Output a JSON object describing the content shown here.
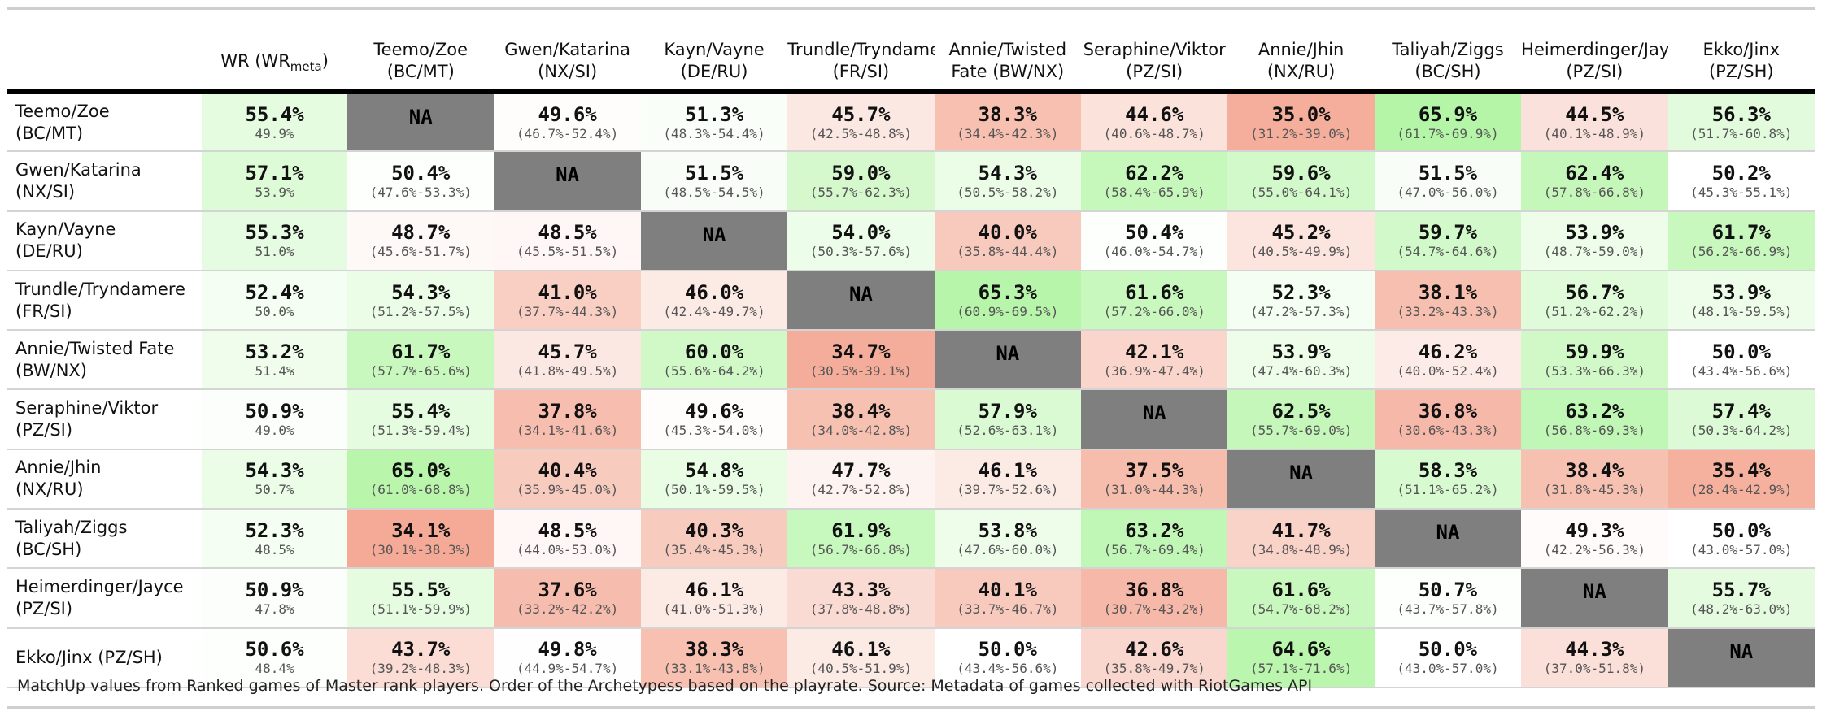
{
  "chart_data": {
    "type": "table",
    "wr_header": "WR (WR",
    "wr_header_sub": "meta",
    "wr_header_close": ")",
    "na_label": "NA",
    "columns": [
      {
        "l1": "Teemo/Zoe",
        "l2": "(BC/MT)"
      },
      {
        "l1": "Gwen/Katarina",
        "l2": "(NX/SI)"
      },
      {
        "l1": "Kayn/Vayne",
        "l2": "(DE/RU)"
      },
      {
        "l1": "Trundle/Tryndamere",
        "l2": "(FR/SI)"
      },
      {
        "l1": "Annie/Twisted",
        "l2": "Fate (BW/NX)"
      },
      {
        "l1": "Seraphine/Viktor",
        "l2": "(PZ/SI)"
      },
      {
        "l1": "Annie/Jhin",
        "l2": "(NX/RU)"
      },
      {
        "l1": "Taliyah/Ziggs",
        "l2": "(BC/SH)"
      },
      {
        "l1": "Heimerdinger/Jayce",
        "l2": "(PZ/SI)"
      },
      {
        "l1": "Ekko/Jinx",
        "l2": "(PZ/SH)"
      }
    ],
    "rows": [
      {
        "l1": "Teemo/Zoe",
        "l2": "(BC/MT)",
        "wr": "55.4%",
        "wr_meta": "49.9%",
        "cells": [
          null,
          {
            "v": 49.6,
            "ci": "(46.7%-52.4%)"
          },
          {
            "v": 51.3,
            "ci": "(48.3%-54.4%)"
          },
          {
            "v": 45.7,
            "ci": "(42.5%-48.8%)"
          },
          {
            "v": 38.3,
            "ci": "(34.4%-42.3%)"
          },
          {
            "v": 44.6,
            "ci": "(40.6%-48.7%)"
          },
          {
            "v": 35.0,
            "ci": "(31.2%-39.0%)"
          },
          {
            "v": 65.9,
            "ci": "(61.7%-69.9%)"
          },
          {
            "v": 44.5,
            "ci": "(40.1%-48.9%)"
          },
          {
            "v": 56.3,
            "ci": "(51.7%-60.8%)"
          }
        ]
      },
      {
        "l1": "Gwen/Katarina",
        "l2": "(NX/SI)",
        "wr": "57.1%",
        "wr_meta": "53.9%",
        "cells": [
          {
            "v": 50.4,
            "ci": "(47.6%-53.3%)"
          },
          null,
          {
            "v": 51.5,
            "ci": "(48.5%-54.5%)"
          },
          {
            "v": 59.0,
            "ci": "(55.7%-62.3%)"
          },
          {
            "v": 54.3,
            "ci": "(50.5%-58.2%)"
          },
          {
            "v": 62.2,
            "ci": "(58.4%-65.9%)"
          },
          {
            "v": 59.6,
            "ci": "(55.0%-64.1%)"
          },
          {
            "v": 51.5,
            "ci": "(47.0%-56.0%)"
          },
          {
            "v": 62.4,
            "ci": "(57.8%-66.8%)"
          },
          {
            "v": 50.2,
            "ci": "(45.3%-55.1%)"
          }
        ]
      },
      {
        "l1": "Kayn/Vayne",
        "l2": "(DE/RU)",
        "wr": "55.3%",
        "wr_meta": "51.0%",
        "cells": [
          {
            "v": 48.7,
            "ci": "(45.6%-51.7%)"
          },
          {
            "v": 48.5,
            "ci": "(45.5%-51.5%)"
          },
          null,
          {
            "v": 54.0,
            "ci": "(50.3%-57.6%)"
          },
          {
            "v": 40.0,
            "ci": "(35.8%-44.4%)"
          },
          {
            "v": 50.4,
            "ci": "(46.0%-54.7%)"
          },
          {
            "v": 45.2,
            "ci": "(40.5%-49.9%)"
          },
          {
            "v": 59.7,
            "ci": "(54.7%-64.6%)"
          },
          {
            "v": 53.9,
            "ci": "(48.7%-59.0%)"
          },
          {
            "v": 61.7,
            "ci": "(56.2%-66.9%)"
          }
        ]
      },
      {
        "l1": "Trundle/Tryndamere",
        "l2": "(FR/SI)",
        "wr": "52.4%",
        "wr_meta": "50.0%",
        "cells": [
          {
            "v": 54.3,
            "ci": "(51.2%-57.5%)"
          },
          {
            "v": 41.0,
            "ci": "(37.7%-44.3%)"
          },
          {
            "v": 46.0,
            "ci": "(42.4%-49.7%)"
          },
          null,
          {
            "v": 65.3,
            "ci": "(60.9%-69.5%)"
          },
          {
            "v": 61.6,
            "ci": "(57.2%-66.0%)"
          },
          {
            "v": 52.3,
            "ci": "(47.2%-57.3%)"
          },
          {
            "v": 38.1,
            "ci": "(33.2%-43.3%)"
          },
          {
            "v": 56.7,
            "ci": "(51.2%-62.2%)"
          },
          {
            "v": 53.9,
            "ci": "(48.1%-59.5%)"
          }
        ]
      },
      {
        "l1": "Annie/Twisted Fate",
        "l2": "(BW/NX)",
        "wr": "53.2%",
        "wr_meta": "51.4%",
        "cells": [
          {
            "v": 61.7,
            "ci": "(57.7%-65.6%)"
          },
          {
            "v": 45.7,
            "ci": "(41.8%-49.5%)"
          },
          {
            "v": 60.0,
            "ci": "(55.6%-64.2%)"
          },
          {
            "v": 34.7,
            "ci": "(30.5%-39.1%)"
          },
          null,
          {
            "v": 42.1,
            "ci": "(36.9%-47.4%)"
          },
          {
            "v": 53.9,
            "ci": "(47.4%-60.3%)"
          },
          {
            "v": 46.2,
            "ci": "(40.0%-52.4%)"
          },
          {
            "v": 59.9,
            "ci": "(53.3%-66.3%)"
          },
          {
            "v": 50.0,
            "ci": "(43.4%-56.6%)"
          }
        ]
      },
      {
        "l1": "Seraphine/Viktor",
        "l2": "(PZ/SI)",
        "wr": "50.9%",
        "wr_meta": "49.0%",
        "cells": [
          {
            "v": 55.4,
            "ci": "(51.3%-59.4%)"
          },
          {
            "v": 37.8,
            "ci": "(34.1%-41.6%)"
          },
          {
            "v": 49.6,
            "ci": "(45.3%-54.0%)"
          },
          {
            "v": 38.4,
            "ci": "(34.0%-42.8%)"
          },
          {
            "v": 57.9,
            "ci": "(52.6%-63.1%)"
          },
          null,
          {
            "v": 62.5,
            "ci": "(55.7%-69.0%)"
          },
          {
            "v": 36.8,
            "ci": "(30.6%-43.3%)"
          },
          {
            "v": 63.2,
            "ci": "(56.8%-69.3%)"
          },
          {
            "v": 57.4,
            "ci": "(50.3%-64.2%)"
          }
        ]
      },
      {
        "l1": "Annie/Jhin",
        "l2": "(NX/RU)",
        "wr": "54.3%",
        "wr_meta": "50.7%",
        "cells": [
          {
            "v": 65.0,
            "ci": "(61.0%-68.8%)"
          },
          {
            "v": 40.4,
            "ci": "(35.9%-45.0%)"
          },
          {
            "v": 54.8,
            "ci": "(50.1%-59.5%)"
          },
          {
            "v": 47.7,
            "ci": "(42.7%-52.8%)"
          },
          {
            "v": 46.1,
            "ci": "(39.7%-52.6%)"
          },
          {
            "v": 37.5,
            "ci": "(31.0%-44.3%)"
          },
          null,
          {
            "v": 58.3,
            "ci": "(51.1%-65.2%)"
          },
          {
            "v": 38.4,
            "ci": "(31.8%-45.3%)"
          },
          {
            "v": 35.4,
            "ci": "(28.4%-42.9%)"
          }
        ]
      },
      {
        "l1": "Taliyah/Ziggs",
        "l2": "(BC/SH)",
        "wr": "52.3%",
        "wr_meta": "48.5%",
        "cells": [
          {
            "v": 34.1,
            "ci": "(30.1%-38.3%)"
          },
          {
            "v": 48.5,
            "ci": "(44.0%-53.0%)"
          },
          {
            "v": 40.3,
            "ci": "(35.4%-45.3%)"
          },
          {
            "v": 61.9,
            "ci": "(56.7%-66.8%)"
          },
          {
            "v": 53.8,
            "ci": "(47.6%-60.0%)"
          },
          {
            "v": 63.2,
            "ci": "(56.7%-69.4%)"
          },
          {
            "v": 41.7,
            "ci": "(34.8%-48.9%)"
          },
          null,
          {
            "v": 49.3,
            "ci": "(42.2%-56.3%)"
          },
          {
            "v": 50.0,
            "ci": "(43.0%-57.0%)"
          }
        ]
      },
      {
        "l1": "Heimerdinger/Jayce",
        "l2": "(PZ/SI)",
        "wr": "50.9%",
        "wr_meta": "47.8%",
        "cells": [
          {
            "v": 55.5,
            "ci": "(51.1%-59.9%)"
          },
          {
            "v": 37.6,
            "ci": "(33.2%-42.2%)"
          },
          {
            "v": 46.1,
            "ci": "(41.0%-51.3%)"
          },
          {
            "v": 43.3,
            "ci": "(37.8%-48.8%)"
          },
          {
            "v": 40.1,
            "ci": "(33.7%-46.7%)"
          },
          {
            "v": 36.8,
            "ci": "(30.7%-43.2%)"
          },
          {
            "v": 61.6,
            "ci": "(54.7%-68.2%)"
          },
          {
            "v": 50.7,
            "ci": "(43.7%-57.8%)"
          },
          null,
          {
            "v": 55.7,
            "ci": "(48.2%-63.0%)"
          }
        ]
      },
      {
        "l1": "Ekko/Jinx (PZ/SH)",
        "l2": "",
        "wr": "50.6%",
        "wr_meta": "48.4%",
        "cells": [
          {
            "v": 43.7,
            "ci": "(39.2%-48.3%)"
          },
          {
            "v": 49.8,
            "ci": "(44.9%-54.7%)"
          },
          {
            "v": 38.3,
            "ci": "(33.1%-43.8%)"
          },
          {
            "v": 46.1,
            "ci": "(40.5%-51.9%)"
          },
          {
            "v": 50.0,
            "ci": "(43.4%-56.6%)"
          },
          {
            "v": 42.6,
            "ci": "(35.8%-49.7%)"
          },
          {
            "v": 64.6,
            "ci": "(57.1%-71.6%)"
          },
          {
            "v": 50.0,
            "ci": "(43.0%-57.0%)"
          },
          {
            "v": 44.3,
            "ci": "(37.0%-51.8%)"
          },
          null
        ]
      }
    ],
    "color_scale": {
      "low": "#f4a995",
      "mid": "#ffffff",
      "high": "#b4f5a6",
      "na": "#7f7f7f"
    }
  },
  "footnote": "MatchUp values from Ranked games of Master rank players. Order of the Archetypess based on the playrate. Source: Metadata of games collected with RiotGames API"
}
